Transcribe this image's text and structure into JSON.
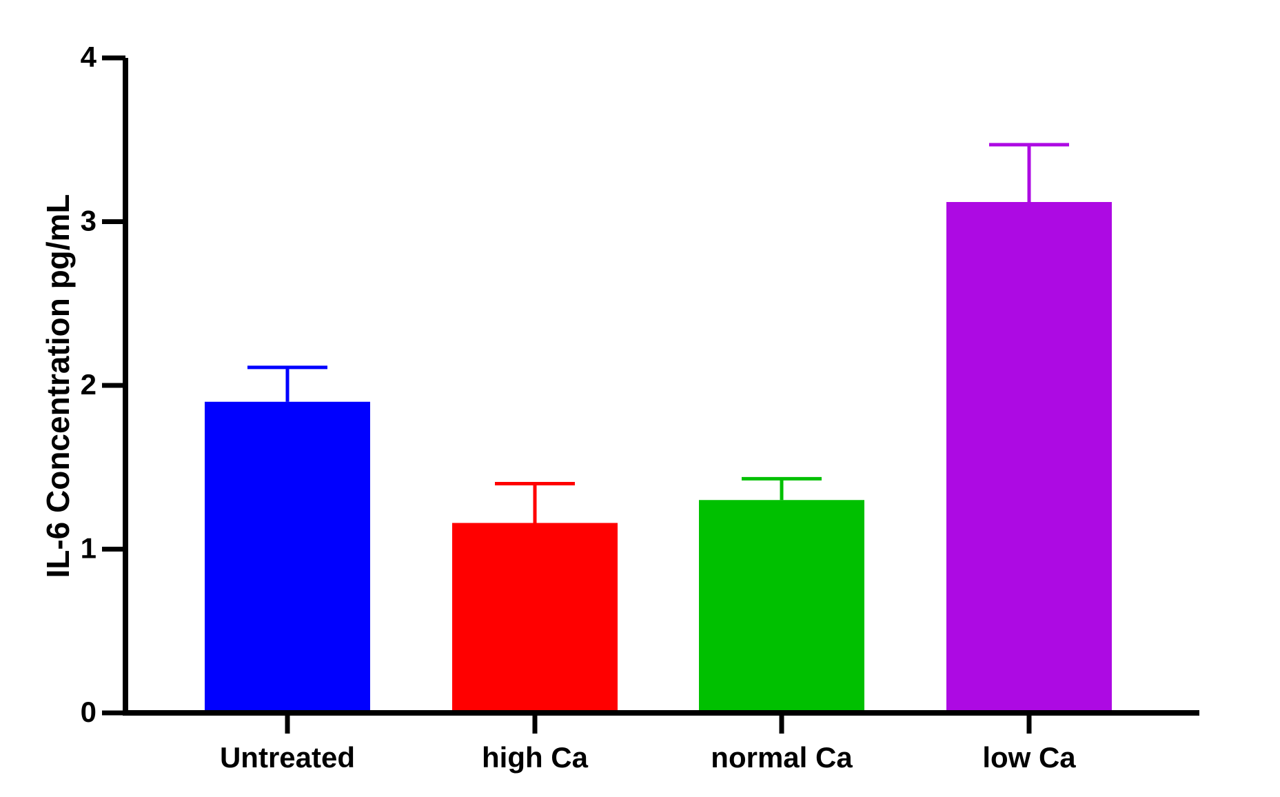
{
  "chart_data": {
    "type": "bar",
    "title": "",
    "xlabel": "",
    "ylabel": "IL-6 Concentration pg/mL",
    "categories": [
      "Untreated",
      "high Ca",
      "normal Ca",
      "low Ca"
    ],
    "values": [
      1.9,
      1.16,
      1.3,
      3.12
    ],
    "error_upper": [
      0.21,
      0.24,
      0.13,
      0.35
    ],
    "colors": [
      "#0000ff",
      "#ff0000",
      "#00c000",
      "#ad0ae3"
    ],
    "ylim": [
      0,
      4
    ],
    "yticks": [
      "0",
      "1",
      "2",
      "3",
      "4"
    ],
    "grid": false,
    "legend": "none"
  }
}
